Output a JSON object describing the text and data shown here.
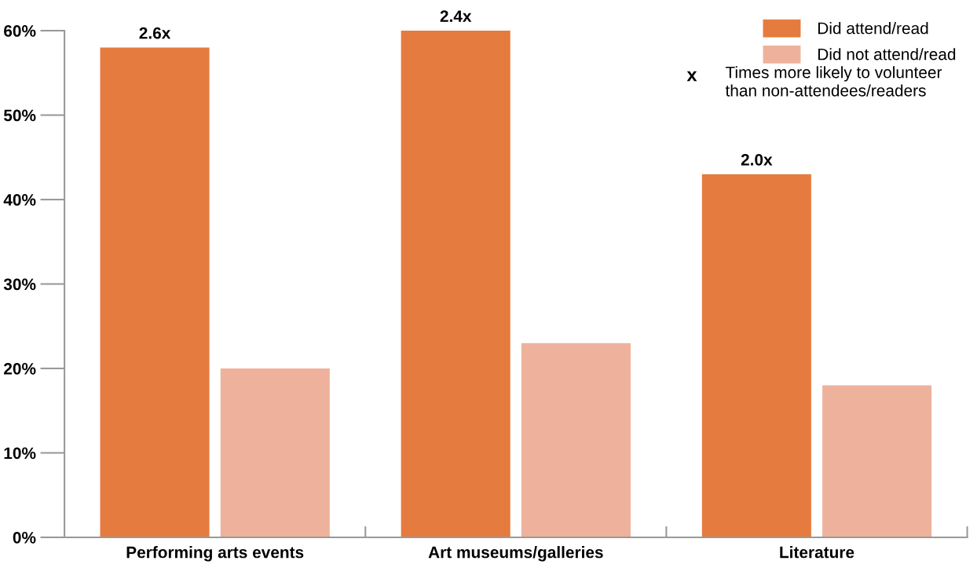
{
  "chart_data": {
    "type": "bar",
    "categories": [
      "Performing arts events",
      "Art museums/galleries",
      "Literature"
    ],
    "series": [
      {
        "name": "Did attend/read",
        "color": "#e57b3e",
        "values": [
          58,
          60,
          43
        ]
      },
      {
        "name": "Did not attend/read",
        "color": "#eeb29c",
        "values": [
          20,
          23,
          18
        ]
      }
    ],
    "ylim": [
      0,
      60
    ],
    "yticks": [
      {
        "value": 0,
        "label": "0%"
      },
      {
        "value": 10,
        "label": "10%"
      },
      {
        "value": 20,
        "label": "20%"
      },
      {
        "value": 30,
        "label": "30%"
      },
      {
        "value": 40,
        "label": "40%"
      },
      {
        "value": 50,
        "label": "50%"
      },
      {
        "value": 60,
        "label": "60%"
      }
    ],
    "grid": false,
    "legend": "top right",
    "annotations": [
      "2.6x",
      "2.4x",
      "2.0x",
      "x",
      "Times more likely to volunteer\nthan non-attendees/readers"
    ]
  }
}
